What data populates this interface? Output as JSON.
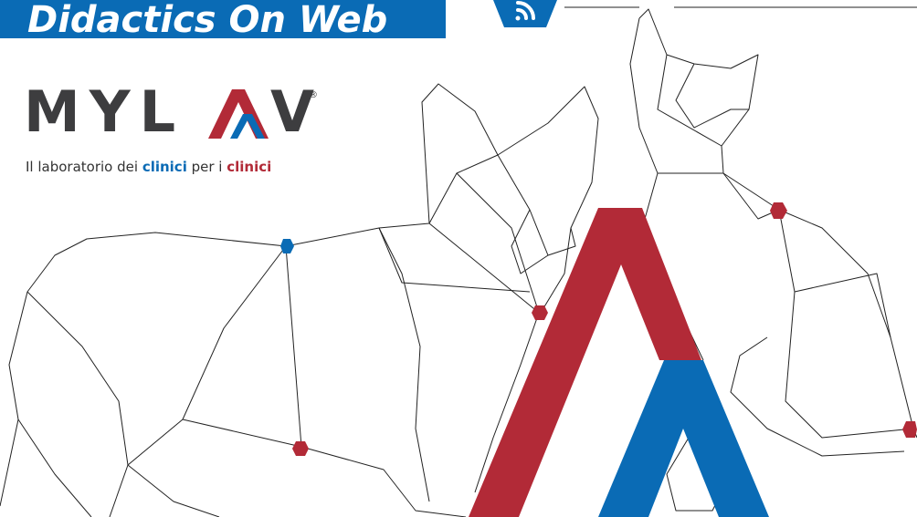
{
  "header": {
    "title": "Didactics On Web"
  },
  "logo": {
    "left": "MYL",
    "right": "V",
    "registered": "®",
    "tagline": [
      "Il laboratorio dei ",
      "clinici",
      " per i ",
      "clinici"
    ]
  }
}
